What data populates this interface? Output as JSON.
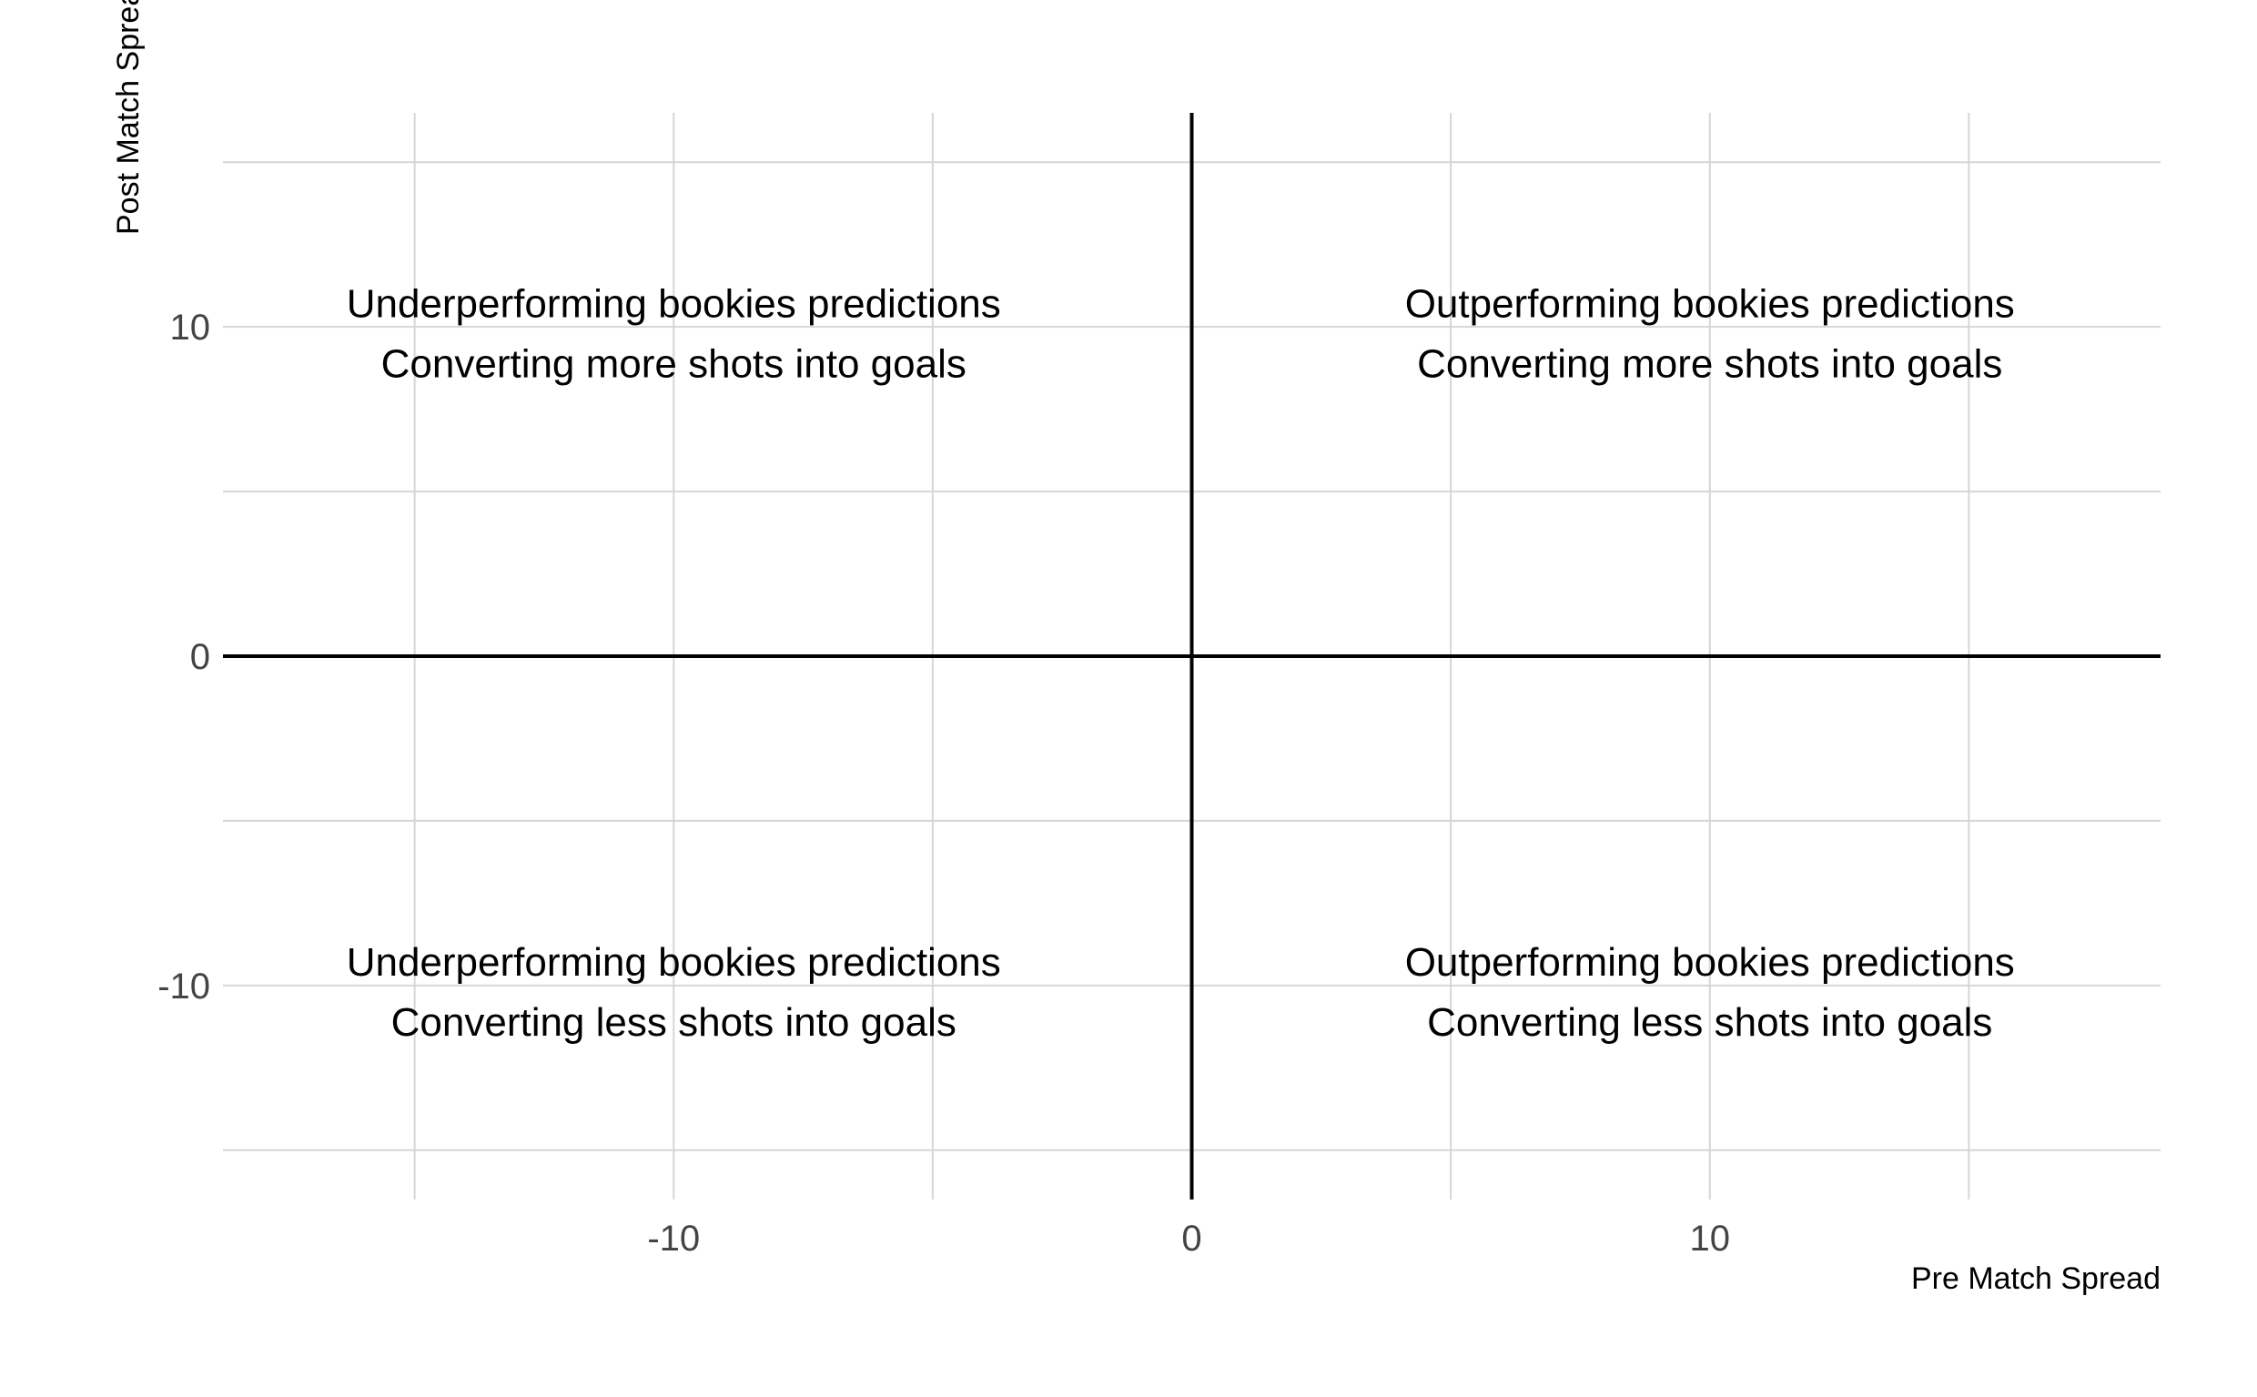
{
  "chart_data": {
    "type": "scatter",
    "title": "",
    "xlabel": "Pre Match Spread",
    "ylabel": "Post Match Spread",
    "xlim": [
      -18.7,
      18.7
    ],
    "ylim": [
      -16.5,
      16.5
    ],
    "x_ticks": [
      -10,
      0,
      10
    ],
    "y_ticks": [
      -10,
      0,
      10
    ],
    "x_minor": [
      -15,
      -5,
      5,
      15
    ],
    "y_minor": [
      -15,
      -5,
      5,
      15
    ],
    "grid": true,
    "reference_lines": {
      "x": 0,
      "y": 0
    },
    "points": [],
    "annotations": [
      {
        "x": -10,
        "y": 9.8,
        "lines": [
          "Underperforming bookies predictions",
          "Converting more shots into goals"
        ]
      },
      {
        "x": 10,
        "y": 9.8,
        "lines": [
          "Outperforming bookies predictions",
          "Converting more shots into goals"
        ]
      },
      {
        "x": -10,
        "y": -10.2,
        "lines": [
          "Underperforming bookies predictions",
          "Converting less shots into goals"
        ]
      },
      {
        "x": 10,
        "y": -10.2,
        "lines": [
          "Outperforming bookies predictions",
          "Converting less shots into goals"
        ]
      }
    ]
  }
}
